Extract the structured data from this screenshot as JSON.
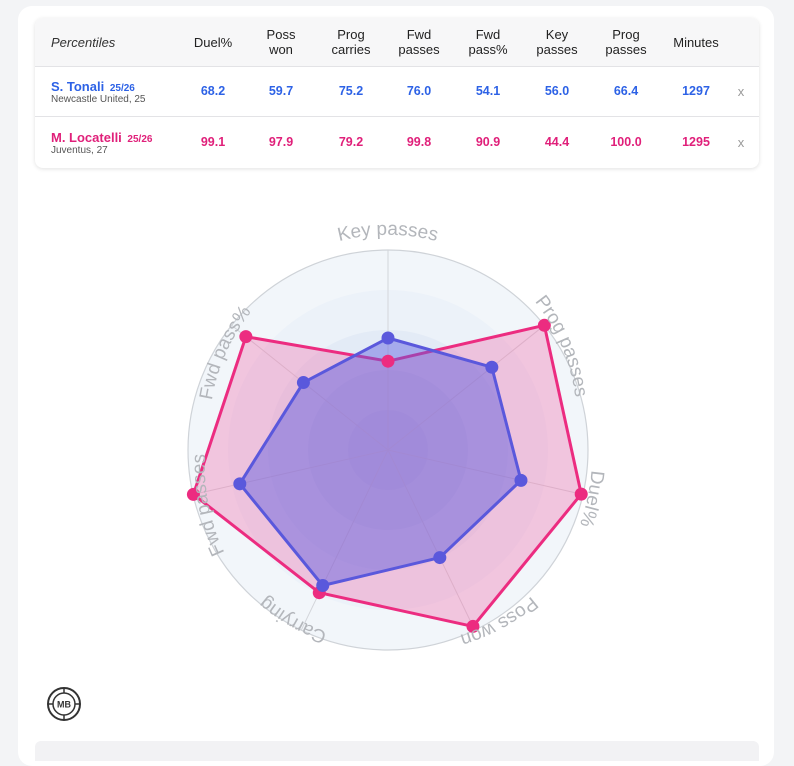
{
  "table": {
    "corner_label": "Percentiles",
    "columns": [
      "Duel%",
      "Poss\nwon",
      "Prog\ncarries",
      "Fwd\npasses",
      "Fwd\npass%",
      "Key\npasses",
      "Prog\npasses",
      "Minutes"
    ],
    "remove_label": "x",
    "players": [
      {
        "name": "S. Tonali",
        "season": "25/26",
        "meta": "Newcastle United, 25",
        "values": [
          "68.2",
          "59.7",
          "75.2",
          "76.0",
          "54.1",
          "56.0",
          "66.4",
          "1297"
        ]
      },
      {
        "name": "M. Locatelli",
        "season": "25/26",
        "meta": "Juventus, 27",
        "values": [
          "99.1",
          "97.9",
          "79.2",
          "99.8",
          "90.9",
          "44.4",
          "100.0",
          "1295"
        ]
      }
    ]
  },
  "colors": {
    "player1": "#2d62e6",
    "player2": "#e0207a",
    "player1_fill": "#5b5be0",
    "player2_fill": "#f06aa8"
  },
  "chart_data": {
    "type": "radar",
    "axes": [
      "Key passes",
      "Prog passes",
      "Duel%",
      "Poss won",
      "Carrying",
      "Fwd passes",
      "Fwd pass%"
    ],
    "range": [
      0,
      100
    ],
    "series": [
      {
        "name": "S. Tonali",
        "values": [
          56.0,
          66.4,
          68.2,
          59.7,
          75.2,
          76.0,
          54.1
        ]
      },
      {
        "name": "M. Locatelli",
        "values": [
          44.4,
          100.0,
          99.1,
          97.9,
          79.2,
          99.8,
          90.9
        ]
      }
    ]
  },
  "logo": {
    "text": "MB",
    "icon": "mb-logo-icon"
  }
}
